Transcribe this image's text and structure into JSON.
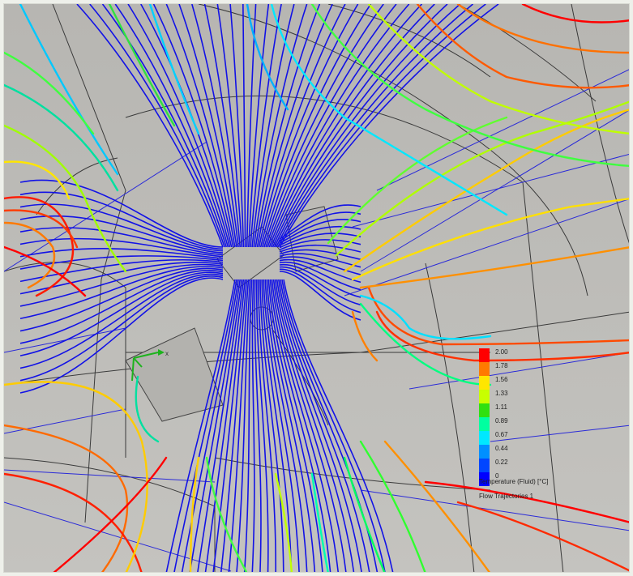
{
  "legend": {
    "ticks": [
      "2.00",
      "1.78",
      "1.56",
      "1.33",
      "1.11",
      "0.89",
      "0.67",
      "0.44",
      "0.22",
      "0"
    ],
    "quantity": "Temperature (Fluid) [°C]",
    "plot_name": "Flow Trajectories 1",
    "colors": [
      "#ff0000",
      "#ff7a00",
      "#ffe600",
      "#c8ff00",
      "#30e010",
      "#00ffa0",
      "#00e8ff",
      "#0090ff",
      "#0046ff",
      "#0000ff"
    ]
  },
  "triad": {
    "x_label": "x"
  },
  "colors": {
    "background": "#bdbcb8",
    "trajectory_core": "#1010e0",
    "outline": "#3a3a3a"
  }
}
